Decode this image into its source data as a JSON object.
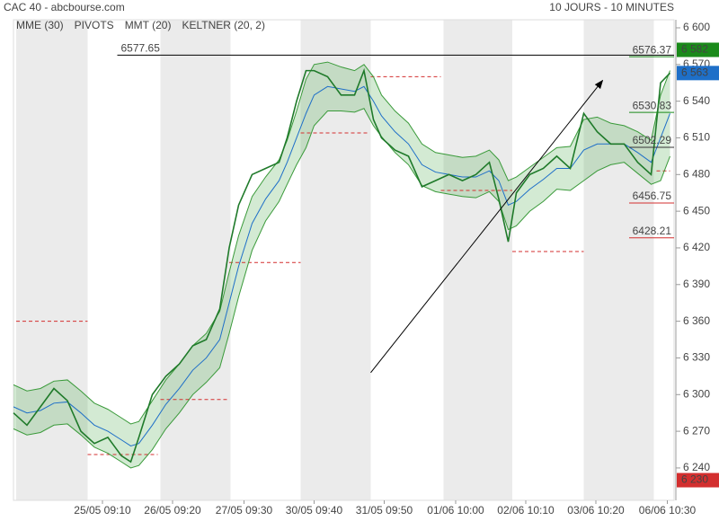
{
  "chart_data": {
    "type": "line",
    "title": "CAC 40 - abcbourse.com",
    "subtitle": "10 JOURS - 10 MINUTES",
    "legend": [
      {
        "name": "MME (30)",
        "color": "#1e6fc8"
      },
      {
        "name": "PIVOTS",
        "color": "#555555"
      },
      {
        "name": "MMT (20)",
        "color": "#1e6fc8"
      },
      {
        "name": "KELTNER (20, 2)",
        "color": "#3a9a3a"
      }
    ],
    "xlim": [
      0,
      490
    ],
    "ylim": [
      6213.5,
      6606.6
    ],
    "xticks": [
      {
        "value": 66,
        "label": "25/05 09:10"
      },
      {
        "value": 118,
        "label": "26/05 09:20"
      },
      {
        "value": 171,
        "label": "27/05 09:30"
      },
      {
        "value": 223,
        "label": "30/05 09:40"
      },
      {
        "value": 275,
        "label": "31/05 09:50"
      },
      {
        "value": 328,
        "label": "01/06 10:00"
      },
      {
        "value": 380,
        "label": "02/06 10:10"
      },
      {
        "value": 432,
        "label": "03/06 10:20"
      },
      {
        "value": 485,
        "label": "06/06 10:30"
      }
    ],
    "yticks": [
      {
        "value": 6240,
        "label": "6 240"
      },
      {
        "value": 6270,
        "label": "6 270"
      },
      {
        "value": 6300,
        "label": "6 300"
      },
      {
        "value": 6330,
        "label": "6 330"
      },
      {
        "value": 6360,
        "label": "6 360"
      },
      {
        "value": 6390,
        "label": "6 390"
      },
      {
        "value": 6420,
        "label": "6 420"
      },
      {
        "value": 6450,
        "label": "6 450"
      },
      {
        "value": 6480,
        "label": "6 480"
      },
      {
        "value": 6510,
        "label": "6 510"
      },
      {
        "value": 6540,
        "label": "6 540"
      },
      {
        "value": 6570,
        "label": "6 570"
      },
      {
        "value": 6600,
        "label": "6 600"
      }
    ],
    "sessions": [
      [
        2,
        55
      ],
      [
        109,
        161
      ],
      [
        213,
        265
      ],
      [
        319,
        370
      ],
      [
        423,
        475
      ]
    ],
    "x": [
      0,
      10,
      20,
      30,
      40,
      50,
      60,
      70,
      80,
      87,
      93,
      103,
      113,
      123,
      133,
      143,
      153,
      160,
      167,
      177,
      187,
      197,
      203,
      210,
      217,
      223,
      233,
      243,
      253,
      260,
      267,
      273,
      283,
      293,
      303,
      313,
      323,
      333,
      343,
      353,
      360,
      367,
      373,
      383,
      393,
      403,
      413,
      423,
      433,
      443,
      453,
      463,
      473,
      480,
      487
    ],
    "series": [
      {
        "name": "KELTNER (20, 2)",
        "color": "#3a9a3a",
        "values": [
          6308,
          6303,
          6305,
          6311,
          6312,
          6303,
          6293,
          6288,
          6281,
          6276,
          6278,
          6295,
          6312,
          6325,
          6340,
          6350,
          6368,
          6400,
          6430,
          6462,
          6478,
          6492,
          6508,
          6532,
          6558,
          6570,
          6572,
          6568,
          6565,
          6570,
          6560,
          6545,
          6532,
          6522,
          6505,
          6498,
          6496,
          6494,
          6495,
          6500,
          6492,
          6475,
          6478,
          6486,
          6494,
          6502,
          6503,
          6525,
          6527,
          6522,
          6520,
          6515,
          6508,
          6545,
          6565
        ]
      },
      {
        "name": "KELTNER (20, 2)",
        "color": "#3a9a3a",
        "values": [
          6272,
          6267,
          6269,
          6275,
          6276,
          6267,
          6257,
          6252,
          6245,
          6240,
          6242,
          6255,
          6272,
          6285,
          6300,
          6310,
          6322,
          6350,
          6380,
          6418,
          6442,
          6458,
          6472,
          6488,
          6502,
          6520,
          6532,
          6532,
          6531,
          6534,
          6520,
          6511,
          6498,
          6488,
          6471,
          6466,
          6464,
          6462,
          6461,
          6466,
          6458,
          6435,
          6438,
          6450,
          6458,
          6468,
          6467,
          6475,
          6483,
          6488,
          6490,
          6481,
          6472,
          6475,
          6495
        ]
      },
      {
        "name": "MME (30)",
        "color": "#1e6fc8",
        "values": [
          6290,
          6285,
          6287,
          6293,
          6294,
          6285,
          6275,
          6270,
          6263,
          6258,
          6260,
          6275,
          6292,
          6305,
          6320,
          6330,
          6345,
          6375,
          6405,
          6440,
          6460,
          6475,
          6490,
          6510,
          6530,
          6545,
          6552,
          6550,
          6548,
          6552,
          6540,
          6528,
          6515,
          6505,
          6488,
          6482,
          6480,
          6478,
          6478,
          6483,
          6475,
          6455,
          6458,
          6468,
          6476,
          6485,
          6485,
          6500,
          6505,
          6505,
          6505,
          6498,
          6490,
          6510,
          6530
        ]
      },
      {
        "name": "CAC 40",
        "color": "#1f7a2a",
        "values": [
          6285,
          6275,
          6290,
          6305,
          6295,
          6270,
          6260,
          6265,
          6250,
          6245,
          6265,
          6300,
          6315,
          6325,
          6340,
          6345,
          6370,
          6420,
          6455,
          6480,
          6485,
          6490,
          6510,
          6540,
          6565,
          6565,
          6560,
          6545,
          6545,
          6565,
          6525,
          6510,
          6500,
          6495,
          6470,
          6475,
          6480,
          6475,
          6480,
          6490,
          6460,
          6425,
          6465,
          6480,
          6485,
          6495,
          6485,
          6530,
          6515,
          6505,
          6505,
          6490,
          6480,
          6555,
          6563
        ]
      }
    ],
    "pivots": [
      {
        "value": 6360,
        "x": [
          2,
          55
        ]
      },
      {
        "value": 6251,
        "x": [
          55,
          107
        ]
      },
      {
        "value": 6296,
        "x": [
          109,
          160
        ]
      },
      {
        "value": 6408,
        "x": [
          160,
          213
        ]
      },
      {
        "value": 6514,
        "x": [
          213,
          263
        ]
      },
      {
        "value": 6560,
        "x": [
          265,
          317
        ]
      },
      {
        "value": 6467,
        "x": [
          317,
          370
        ]
      },
      {
        "value": 6417,
        "x": [
          370,
          423
        ]
      },
      {
        "value": 6483,
        "x": [
          477,
          487
        ]
      }
    ],
    "reference_line": {
      "value": 6577.65,
      "x": [
        77,
        490
      ]
    },
    "trend_line": {
      "x": [
        265,
        437
      ],
      "values": [
        6318,
        6557
      ]
    },
    "levels": [
      {
        "value": 6576.37,
        "color": "#1a8a1a"
      },
      {
        "value": 6530.83,
        "color": "#1a8a1a"
      },
      {
        "value": 6502.29,
        "color": "#333333"
      },
      {
        "value": 6456.75,
        "color": "#d32f2f"
      },
      {
        "value": 6428.21,
        "color": "#d32f2f"
      }
    ],
    "price_tags": [
      {
        "value": 6582,
        "label": "6 582",
        "color": "#1a8a1a"
      },
      {
        "value": 6563,
        "label": "6 563",
        "color": "#1e6fc8"
      },
      {
        "value": 6230,
        "label": "6 230",
        "color": "#d32f2f"
      }
    ]
  }
}
